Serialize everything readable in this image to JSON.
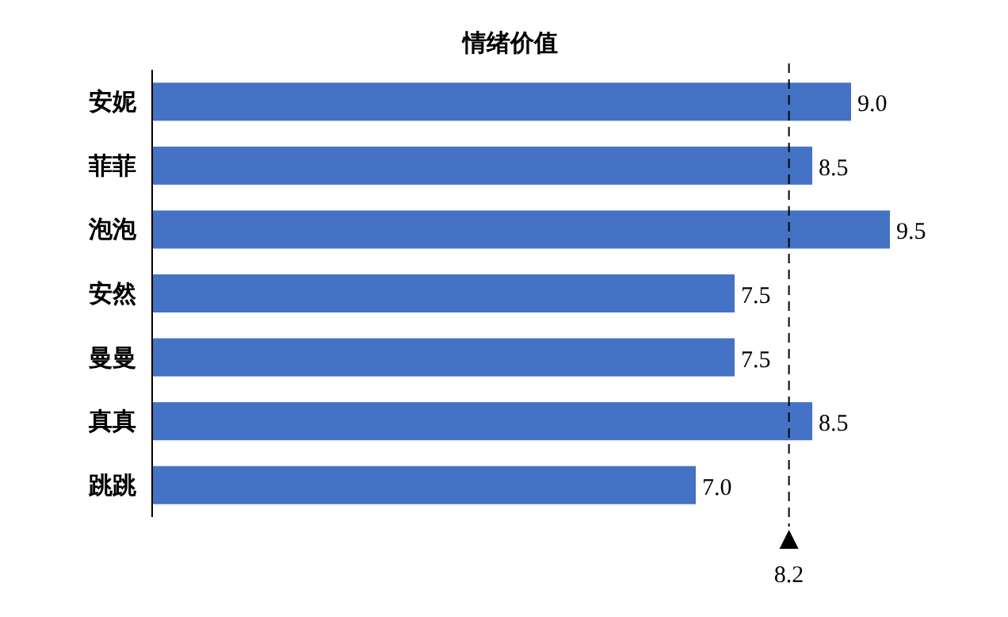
{
  "chart_data": {
    "type": "bar",
    "orientation": "horizontal",
    "title": "情绪价值",
    "categories": [
      "安妮",
      "菲菲",
      "泡泡",
      "安然",
      "曼曼",
      "真真",
      "跳跳"
    ],
    "values": [
      9.0,
      8.5,
      9.5,
      7.5,
      7.5,
      8.5,
      7.0
    ],
    "value_labels": [
      "9.0",
      "8.5",
      "9.5",
      "7.5",
      "7.5",
      "8.5",
      "7.0"
    ],
    "color": "#4472c4",
    "ref_lines": [
      {
        "axis": "x",
        "value": 8.2,
        "label": "8.2",
        "line_style": "dashed",
        "color": "#000000"
      }
    ]
  }
}
